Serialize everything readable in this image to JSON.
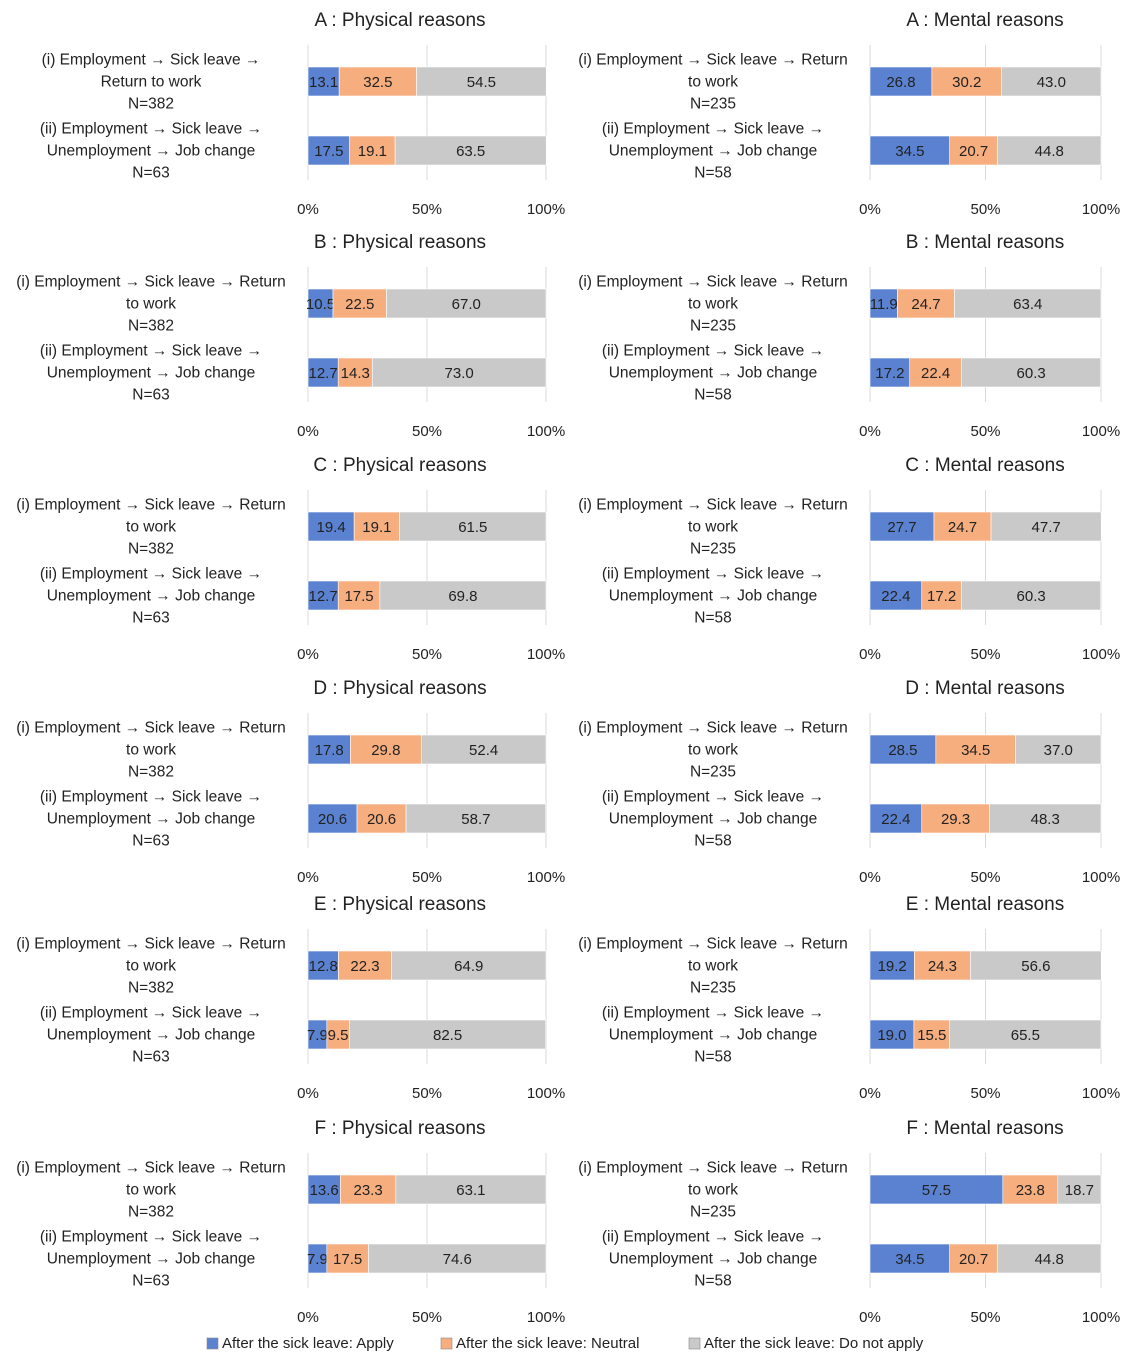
{
  "chart_data": {
    "type": "bar",
    "stacked": true,
    "orientation": "horizontal",
    "xlim": [
      0,
      100
    ],
    "x_ticks": [
      "0%",
      "50%",
      "100%"
    ],
    "grid": true,
    "legend_position": "bottom",
    "colors": {
      "apply": "#5B82D0",
      "neutral": "#F7AE7F",
      "not_apply": "#C9C9C9",
      "grid": "#D9D9D9"
    },
    "legend": [
      {
        "key": "apply",
        "label": "After the sick leave:  Apply"
      },
      {
        "key": "neutral",
        "label": "After the sick leave:  Neutral"
      },
      {
        "key": "not_apply",
        "label": "After the sick leave:  Do not apply"
      }
    ],
    "panels": [
      {
        "title": "A  : Physical reasons",
        "categories": [
          {
            "lines": [
              "(i) Employment → Sick leave →",
              "Return to work",
              "N=382"
            ],
            "values": [
              13.1,
              32.5,
              54.5
            ]
          },
          {
            "lines": [
              "(ii) Employment → Sick leave →",
              "Unemployment → Job change",
              "N=63"
            ],
            "values": [
              17.5,
              19.1,
              63.5
            ]
          }
        ],
        "ticks": [
          "0%",
          "50%",
          "100%"
        ]
      },
      {
        "title": "A : Mental reasons",
        "categories": [
          {
            "lines": [
              "(i) Employment → Sick leave → Return",
              "to work",
              "N=235"
            ],
            "values": [
              26.8,
              30.2,
              43.0
            ]
          },
          {
            "lines": [
              "(ii) Employment → Sick leave →",
              "Unemployment → Job change",
              "N=58"
            ],
            "values": [
              34.5,
              20.7,
              44.8
            ]
          }
        ],
        "ticks": [
          "0%",
          "50%",
          "100%"
        ]
      },
      {
        "title": "B : Physical reasons",
        "categories": [
          {
            "lines": [
              "(i) Employment → Sick leave → Return",
              "to work",
              "N=382"
            ],
            "values": [
              10.5,
              22.5,
              67.0
            ]
          },
          {
            "lines": [
              "(ii) Employment → Sick leave →",
              "Unemployment → Job change",
              "N=63"
            ],
            "values": [
              12.7,
              14.3,
              73.0
            ]
          }
        ],
        "ticks": [
          "0%",
          "50%",
          "100%"
        ]
      },
      {
        "title": "B : Mental reasons",
        "categories": [
          {
            "lines": [
              "(i) Employment → Sick leave → Return",
              "to work",
              "N=235"
            ],
            "values": [
              11.9,
              24.7,
              63.4
            ]
          },
          {
            "lines": [
              "(ii) Employment → Sick leave →",
              "Unemployment → Job change",
              "N=58"
            ],
            "values": [
              17.2,
              22.4,
              60.3
            ]
          }
        ],
        "ticks": [
          "0%",
          "50%",
          "100%"
        ]
      },
      {
        "title": "C : Physical  reasons",
        "categories": [
          {
            "lines": [
              "(i) Employment → Sick leave → Return",
              "to work",
              "N=382"
            ],
            "values": [
              19.4,
              19.1,
              61.5
            ]
          },
          {
            "lines": [
              "(ii) Employment → Sick leave →",
              "Unemployment → Job change",
              "N=63"
            ],
            "values": [
              12.7,
              17.5,
              69.8
            ]
          }
        ],
        "ticks": [
          "0%",
          "50%",
          "100%"
        ]
      },
      {
        "title": "C : Mental reasons",
        "categories": [
          {
            "lines": [
              "(i) Employment → Sick leave → Return",
              "to work",
              "N=235"
            ],
            "values": [
              27.7,
              24.7,
              47.7
            ]
          },
          {
            "lines": [
              "(ii) Employment → Sick leave →",
              "Unemployment → Job change",
              "N=58"
            ],
            "values": [
              22.4,
              17.2,
              60.3
            ]
          }
        ],
        "ticks": [
          "0%",
          "50%",
          "100%"
        ]
      },
      {
        "title": "D : Physical reasons",
        "categories": [
          {
            "lines": [
              "(i) Employment → Sick leave → Return",
              "to work",
              "N=382"
            ],
            "values": [
              17.8,
              29.8,
              52.4
            ]
          },
          {
            "lines": [
              "(ii) Employment → Sick leave →",
              "Unemployment → Job change",
              "N=63"
            ],
            "values": [
              20.6,
              20.6,
              58.7
            ]
          }
        ],
        "ticks": [
          "0%",
          "50%",
          "100%"
        ]
      },
      {
        "title": "D : Mental reasons",
        "categories": [
          {
            "lines": [
              "(i) Employment → Sick leave → Return",
              "to work",
              "N=235"
            ],
            "values": [
              28.5,
              34.5,
              37.0
            ]
          },
          {
            "lines": [
              "(ii) Employment → Sick leave →",
              "Unemployment → Job change",
              "N=58"
            ],
            "values": [
              22.4,
              29.3,
              48.3
            ]
          }
        ],
        "ticks": [
          "0%",
          "50%",
          "100%"
        ]
      },
      {
        "title": "E : Physical  reasons",
        "categories": [
          {
            "lines": [
              "(i) Employment → Sick leave → Return",
              "to work",
              "N=382"
            ],
            "values": [
              12.8,
              22.3,
              64.9
            ]
          },
          {
            "lines": [
              "(ii) Employment → Sick leave →",
              "Unemployment → Job change",
              "N=63"
            ],
            "values": [
              7.9,
              9.5,
              82.5
            ]
          }
        ],
        "ticks": [
          "0%",
          "50%",
          "100%"
        ]
      },
      {
        "title": "E : Mental reasons",
        "categories": [
          {
            "lines": [
              "(i) Employment → Sick leave → Return",
              "to work",
              "N=235"
            ],
            "values": [
              19.2,
              24.3,
              56.6
            ]
          },
          {
            "lines": [
              "(ii) Employment → Sick leave →",
              "Unemployment → Job change",
              "N=58"
            ],
            "values": [
              19.0,
              15.5,
              65.5
            ]
          }
        ],
        "ticks": [
          "0%",
          "50%",
          "100%"
        ]
      },
      {
        "title": "F : Physical  reasons",
        "categories": [
          {
            "lines": [
              "(i) Employment → Sick leave → Return",
              "to work",
              "N=382"
            ],
            "values": [
              13.6,
              23.3,
              63.1
            ]
          },
          {
            "lines": [
              "(ii) Employment → Sick leave →",
              "Unemployment → Job change",
              "N=63"
            ],
            "values": [
              7.9,
              17.5,
              74.6
            ]
          }
        ],
        "ticks": [
          "0%",
          "50%",
          "100%"
        ]
      },
      {
        "title": "F : Mental reasons",
        "categories": [
          {
            "lines": [
              "(i) Employment → Sick leave → Return",
              "to work",
              "N=235"
            ],
            "values": [
              57.5,
              23.8,
              18.7
            ]
          },
          {
            "lines": [
              "(ii) Employment → Sick leave →",
              "Unemployment → Job change",
              "N=58"
            ],
            "values": [
              34.5,
              20.7,
              44.8
            ]
          }
        ],
        "ticks": [
          "0%",
          "50%",
          "100%"
        ]
      }
    ]
  }
}
